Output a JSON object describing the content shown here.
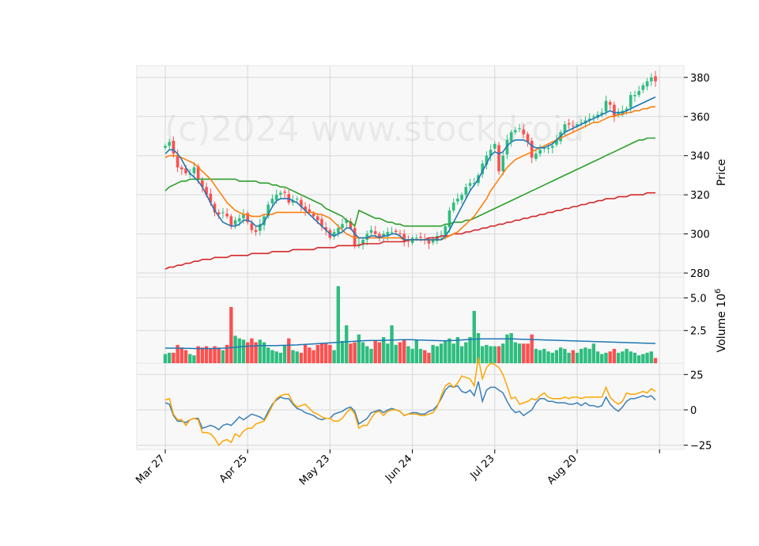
{
  "watermark": "(c)2024 www.stockdroid",
  "colors": {
    "up": "#2ebd7f",
    "down": "#ff4f4f",
    "ma_short": "#1f77b4",
    "ma_mid": "#ff7f0e",
    "ma_long": "#2ca02c",
    "ma_200": "#d62728",
    "osc_a": "#3a7fb8",
    "osc_b": "#ffa500",
    "vol_ma": "#1f77b4",
    "grid": "#d9d9d9",
    "panel_bg": "#f8f8f8"
  },
  "chart_data": [
    {
      "type": "candlestick",
      "name": "price",
      "ylabel": "Price",
      "ylim": [
        278,
        386
      ],
      "yticks": [
        280,
        300,
        320,
        340,
        360,
        380
      ],
      "x_tick_labels": [
        "Mar 27",
        "Apr 25",
        "May 23",
        "Jun 24",
        "Jul 23",
        "Aug 20",
        ""
      ],
      "x_tick_index": [
        0,
        20,
        40,
        60,
        80,
        100,
        120
      ],
      "close": [
        345,
        347,
        341,
        334,
        333,
        331,
        331,
        334,
        328,
        324,
        320,
        316,
        311,
        310,
        311,
        309,
        304,
        307,
        308,
        310,
        306,
        302,
        301,
        305,
        309,
        315,
        318,
        320,
        321,
        321,
        316,
        317,
        318,
        314,
        312,
        311,
        309,
        307,
        304,
        302,
        298,
        301,
        303,
        305,
        307,
        303,
        294,
        295,
        297,
        300,
        302,
        300,
        298,
        300,
        301,
        301,
        301,
        300,
        296,
        296,
        298,
        298,
        298,
        297,
        295,
        297,
        299,
        299,
        304,
        312,
        316,
        318,
        320,
        324,
        326,
        326,
        330,
        336,
        340,
        343,
        346,
        332,
        340,
        348,
        352,
        353,
        354,
        351,
        347,
        339,
        341,
        343,
        344,
        344,
        345,
        348,
        352,
        356,
        356,
        355,
        356,
        357,
        358,
        359,
        360,
        361,
        362,
        368,
        366,
        360,
        362,
        363,
        364,
        371,
        371,
        373,
        376,
        378,
        380,
        378
      ],
      "ma_short": [
        341,
        343,
        343,
        341,
        338,
        334,
        331,
        329,
        327,
        324,
        320,
        316,
        312,
        309,
        306,
        305,
        304,
        304,
        305,
        307,
        307,
        306,
        304,
        304,
        306,
        310,
        314,
        317,
        318,
        318,
        318,
        317,
        316,
        314,
        312,
        310,
        308,
        306,
        304,
        302,
        300,
        299,
        300,
        301,
        303,
        303,
        300,
        298,
        298,
        298,
        299,
        299,
        298,
        299,
        299,
        300,
        300,
        299,
        297,
        297,
        297,
        297,
        297,
        297,
        297,
        297,
        297,
        297,
        299,
        302,
        306,
        310,
        314,
        318,
        322,
        325,
        328,
        332,
        336,
        340,
        342,
        341,
        342,
        345,
        347,
        348,
        348,
        348,
        347,
        345,
        344,
        344,
        344,
        345,
        346,
        348,
        350,
        352,
        353,
        354,
        355,
        356,
        357,
        358,
        359,
        360,
        361,
        362,
        363,
        362,
        362,
        362,
        363,
        364,
        365,
        366,
        367,
        368,
        369,
        370
      ],
      "ma_mid": [
        339,
        340,
        340,
        340,
        339,
        338,
        337,
        336,
        334,
        332,
        330,
        328,
        325,
        322,
        319,
        316,
        314,
        312,
        311,
        310,
        310,
        309,
        309,
        309,
        310,
        310,
        310,
        311,
        311,
        311,
        311,
        311,
        311,
        311,
        311,
        311,
        311,
        310,
        310,
        309,
        308,
        306,
        304,
        302,
        300,
        299,
        298,
        298,
        298,
        298,
        298,
        298,
        298,
        298,
        298,
        298,
        298,
        298,
        297,
        297,
        297,
        297,
        297,
        297,
        297,
        297,
        297,
        297,
        298,
        299,
        300,
        301,
        303,
        305,
        307,
        309,
        312,
        315,
        318,
        322,
        325,
        328,
        331,
        334,
        336,
        338,
        339,
        340,
        341,
        342,
        343,
        344,
        345,
        346,
        347,
        348,
        349,
        350,
        351,
        352,
        353,
        354,
        355,
        356,
        357,
        357,
        358,
        359,
        360,
        360,
        361,
        361,
        362,
        362,
        363,
        363,
        364,
        364,
        365,
        365
      ],
      "ma_long": [
        322,
        324,
        325,
        326,
        327,
        327,
        328,
        328,
        328,
        328,
        328,
        328,
        328,
        328,
        328,
        328,
        328,
        328,
        327,
        327,
        327,
        327,
        327,
        326,
        326,
        326,
        325,
        325,
        324,
        324,
        323,
        322,
        321,
        320,
        319,
        318,
        317,
        316,
        315,
        313,
        312,
        311,
        310,
        309,
        307,
        306,
        304,
        312,
        311,
        310,
        309,
        308,
        308,
        307,
        306,
        306,
        305,
        305,
        304,
        304,
        304,
        304,
        304,
        304,
        304,
        304,
        304,
        304,
        305,
        305,
        306,
        306,
        306,
        307,
        307,
        308,
        309,
        310,
        311,
        312,
        313,
        314,
        315,
        316,
        317,
        318,
        319,
        320,
        321,
        322,
        323,
        324,
        325,
        326,
        327,
        328,
        329,
        330,
        331,
        332,
        333,
        334,
        335,
        336,
        337,
        338,
        339,
        340,
        341,
        342,
        343,
        344,
        345,
        346,
        347,
        348,
        348,
        349,
        349,
        349
      ],
      "ma_200": [
        282,
        283,
        283,
        284,
        284,
        285,
        285,
        286,
        286,
        287,
        287,
        287,
        288,
        288,
        288,
        288,
        289,
        289,
        289,
        289,
        289,
        290,
        290,
        290,
        290,
        290,
        291,
        291,
        291,
        291,
        291,
        292,
        292,
        292,
        292,
        292,
        292,
        293,
        293,
        293,
        293,
        293,
        294,
        294,
        294,
        294,
        294,
        294,
        295,
        295,
        295,
        295,
        295,
        296,
        296,
        296,
        296,
        296,
        296,
        297,
        297,
        297,
        297,
        297,
        298,
        298,
        298,
        299,
        299,
        299,
        300,
        300,
        300,
        301,
        301,
        302,
        302,
        303,
        303,
        304,
        304,
        305,
        305,
        306,
        306,
        307,
        307,
        308,
        308,
        309,
        309,
        310,
        310,
        311,
        311,
        312,
        312,
        313,
        313,
        314,
        314,
        315,
        315,
        316,
        316,
        317,
        317,
        318,
        318,
        318,
        319,
        319,
        319,
        320,
        320,
        320,
        320,
        321,
        321,
        321
      ]
    },
    {
      "type": "bar",
      "name": "volume",
      "ylabel": "Volume  10^6",
      "ylim": [
        0,
        6.6
      ],
      "yticks": [
        2.5,
        5.0
      ],
      "values": [
        0.7,
        0.8,
        0.8,
        1.4,
        1.2,
        1.0,
        0.7,
        0.6,
        1.3,
        1.2,
        1.3,
        1.1,
        1.3,
        1.2,
        1.0,
        1.4,
        4.3,
        2.1,
        1.9,
        1.8,
        1.6,
        1.9,
        1.6,
        1.8,
        1.6,
        1.2,
        1.0,
        0.9,
        0.8,
        1.4,
        1.9,
        1.0,
        0.9,
        0.8,
        1.4,
        1.2,
        1.0,
        1.4,
        1.5,
        1.5,
        1.4,
        1.0,
        5.9,
        1.7,
        2.9,
        1.5,
        1.6,
        2.2,
        1.6,
        1.3,
        1.1,
        1.7,
        1.6,
        2.0,
        1.5,
        2.9,
        1.4,
        1.6,
        1.8,
        1.3,
        1.1,
        1.8,
        1.1,
        1.0,
        0.8,
        1.4,
        1.3,
        1.5,
        1.7,
        1.9,
        1.5,
        2.0,
        1.3,
        1.6,
        2.0,
        4.0,
        2.3,
        1.3,
        1.4,
        1.3,
        1.3,
        1.3,
        1.5,
        2.2,
        2.3,
        1.6,
        1.5,
        1.5,
        1.5,
        2.2,
        1.1,
        1.0,
        1.1,
        0.9,
        0.8,
        1.0,
        1.2,
        1.1,
        0.8,
        1.0,
        0.8,
        1.1,
        1.2,
        1.1,
        1.5,
        0.9,
        0.7,
        0.8,
        0.9,
        1.1,
        0.8,
        0.9,
        1.1,
        0.9,
        0.8,
        0.6,
        0.7,
        0.8,
        0.9,
        0.4
      ],
      "ma": [
        1.15,
        1.15,
        1.15,
        1.15,
        1.15,
        1.14,
        1.13,
        1.12,
        1.12,
        1.12,
        1.12,
        1.12,
        1.12,
        1.13,
        1.15,
        1.17,
        1.2,
        1.22,
        1.25,
        1.28,
        1.3,
        1.32,
        1.33,
        1.34,
        1.35,
        1.35,
        1.35,
        1.35,
        1.36,
        1.37,
        1.38,
        1.39,
        1.4,
        1.42,
        1.44,
        1.46,
        1.48,
        1.5,
        1.52,
        1.54,
        1.56,
        1.58,
        1.6,
        1.62,
        1.64,
        1.66,
        1.68,
        1.7,
        1.72,
        1.73,
        1.74,
        1.74,
        1.74,
        1.75,
        1.76,
        1.77,
        1.78,
        1.79,
        1.8,
        1.8,
        1.79,
        1.78,
        1.77,
        1.76,
        1.75,
        1.74,
        1.73,
        1.72,
        1.72,
        1.73,
        1.74,
        1.76,
        1.78,
        1.8,
        1.82,
        1.84,
        1.85,
        1.86,
        1.86,
        1.86,
        1.86,
        1.86,
        1.86,
        1.86,
        1.86,
        1.85,
        1.84,
        1.83,
        1.82,
        1.81,
        1.8,
        1.79,
        1.78,
        1.77,
        1.76,
        1.75,
        1.74,
        1.73,
        1.72,
        1.71,
        1.7,
        1.69,
        1.68,
        1.67,
        1.66,
        1.65,
        1.64,
        1.63,
        1.62,
        1.61,
        1.6,
        1.59,
        1.58,
        1.57,
        1.56,
        1.55,
        1.54,
        1.53,
        1.52,
        1.51
      ]
    },
    {
      "type": "line",
      "name": "oscillator",
      "ylim": [
        -28,
        33
      ],
      "yticks": [
        -25,
        0,
        25
      ],
      "series": [
        {
          "color_key": "osc_a",
          "values": [
            5,
            4,
            -4,
            -8,
            -8,
            -9,
            -7,
            -6,
            -6,
            -13,
            -12,
            -11,
            -12,
            -14,
            -11,
            -10,
            -11,
            -8,
            -5,
            -7,
            -5,
            -3,
            -4,
            -5,
            -7,
            -1,
            4,
            7,
            9,
            8,
            8,
            4,
            1,
            0,
            -2,
            -3,
            -4,
            -6,
            -7,
            -6,
            -6,
            -3,
            -2,
            -1,
            1,
            2,
            -1,
            -10,
            -8,
            -6,
            -2,
            -1,
            0,
            -2,
            0,
            1,
            0,
            -1,
            -4,
            -3,
            -2,
            -2,
            -3,
            -3,
            -1,
            0,
            3,
            8,
            14,
            17,
            16,
            17,
            13,
            12,
            14,
            10,
            20,
            6,
            14,
            16,
            16,
            14,
            12,
            6,
            1,
            -2,
            -1,
            -4,
            -2,
            0,
            5,
            8,
            8,
            6,
            6,
            5,
            5,
            5,
            4,
            4,
            5,
            3,
            5,
            3,
            3,
            2,
            3,
            9,
            4,
            1,
            -1,
            2,
            6,
            8,
            8,
            9,
            10,
            9,
            10,
            7
          ]
        },
        {
          "color_key": "osc_b",
          "values": [
            7,
            8,
            -3,
            -7,
            -7,
            -11,
            -7,
            -6,
            -7,
            -16,
            -16,
            -17,
            -20,
            -25,
            -22,
            -21,
            -23,
            -17,
            -19,
            -15,
            -13,
            -13,
            -10,
            -9,
            -8,
            -3,
            3,
            8,
            10,
            11,
            11,
            5,
            2,
            3,
            4,
            1,
            -2,
            -3,
            -5,
            -6,
            -6,
            -8,
            -8,
            -6,
            -2,
            1,
            -3,
            -13,
            -11,
            -11,
            -6,
            -2,
            -1,
            -4,
            -1,
            0,
            0,
            -1,
            -4,
            -3,
            -3,
            -3,
            -4,
            -4,
            -3,
            -2,
            2,
            10,
            17,
            19,
            16,
            19,
            24,
            23,
            22,
            17,
            37,
            22,
            30,
            33,
            32,
            30,
            25,
            17,
            8,
            9,
            4,
            5,
            6,
            8,
            7,
            10,
            12,
            9,
            8,
            8,
            8,
            9,
            8,
            9,
            9,
            8,
            9,
            9,
            9,
            9,
            9,
            16,
            9,
            6,
            4,
            6,
            12,
            11,
            11,
            12,
            13,
            12,
            15,
            13
          ]
        }
      ]
    }
  ]
}
